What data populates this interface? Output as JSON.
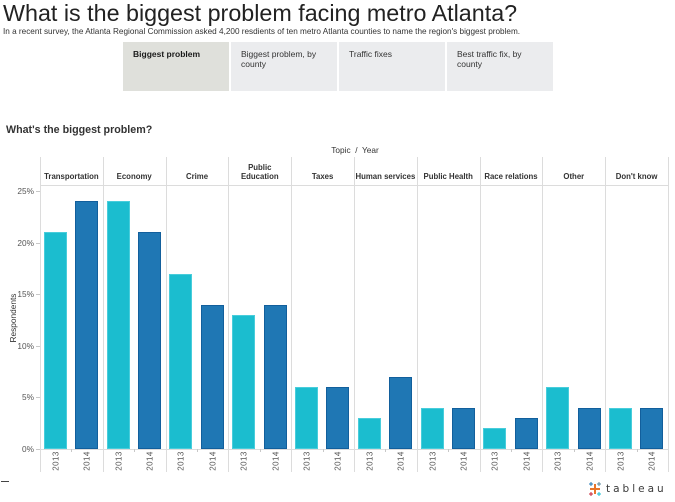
{
  "header": {
    "title": "What is the biggest problem facing metro Atlanta?",
    "subtitle": "In a recent survey, the Atlanta Regional Commission asked 4,200 resdients of ten metro Atlanta counties to name the region's biggest problem."
  },
  "tabs": [
    {
      "label": "Biggest problem",
      "active": true
    },
    {
      "label": "Biggest problem, by county",
      "active": false
    },
    {
      "label": "Traffic fixes",
      "active": false
    },
    {
      "label": "Best traffic fix, by county",
      "active": false
    }
  ],
  "chart_data": {
    "type": "bar",
    "title": "What's the biggest problem?",
    "column_axis_title": "Topic  /  Year",
    "xlabel": "Topic / Year",
    "ylabel": "Respondents",
    "categories": [
      "Transportation",
      "Economy",
      "Crime",
      "Public Education",
      "Taxes",
      "Human services",
      "Public Health",
      "Race relations",
      "Other",
      "Don't know"
    ],
    "series": [
      {
        "name": "2013",
        "color": "#1bbdcf",
        "border": "#48cddb",
        "values": [
          21,
          24,
          17,
          13,
          6,
          3,
          4,
          2,
          6,
          4
        ]
      },
      {
        "name": "2014",
        "color": "#1f77b4",
        "border": "#125f9c",
        "values": [
          24,
          21,
          14,
          14,
          6,
          7,
          4,
          3,
          4,
          4
        ]
      }
    ],
    "yticks": [
      0,
      5,
      10,
      15,
      20,
      25
    ],
    "ytick_labels": [
      "0%",
      "5%",
      "10%",
      "15%",
      "20%",
      "25%"
    ],
    "ylim": [
      0,
      25.5
    ],
    "unit": "%",
    "grid": false,
    "legend": "none"
  },
  "branding": {
    "logo_text": "tableau"
  }
}
